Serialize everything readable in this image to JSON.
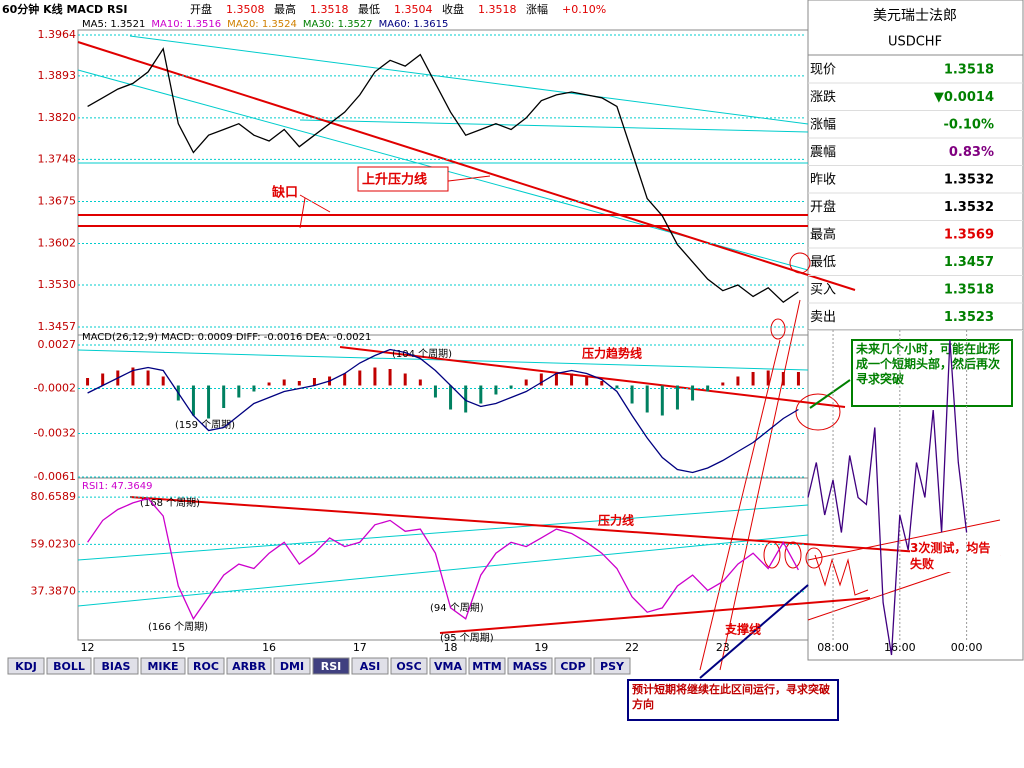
{
  "header": {
    "title": "60分钟 K线 MACD RSI",
    "fields": [
      {
        "label": "开盘",
        "value": "1.3508"
      },
      {
        "label": "最高",
        "value": "1.3518"
      },
      {
        "label": "最低",
        "value": "1.3504"
      },
      {
        "label": "收盘",
        "value": "1.3518"
      },
      {
        "label": "涨幅",
        "value": "+0.10%"
      }
    ]
  },
  "ma_legend": [
    {
      "text": "MA5: 1.3521",
      "color": "#000000"
    },
    {
      "text": "MA10: 1.3516",
      "color": "#cc00cc"
    },
    {
      "text": "MA20: 1.3524",
      "color": "#d08000"
    },
    {
      "text": "MA30: 1.3527",
      "color": "#008000"
    },
    {
      "text": "MA60: 1.3615",
      "color": "#000080"
    }
  ],
  "macd_label": "MACD(26,12,9) MACD: 0.0009 DIFF: -0.0016 DEA: -0.0021",
  "rsi_label": "RSI1: 47.3649",
  "quote": {
    "title": "美元瑞士法郎",
    "symbol": "USDCHF",
    "rows": [
      {
        "label": "现价",
        "value": "1.3518",
        "color": "#008000"
      },
      {
        "label": "涨跌",
        "value": "▼0.0014",
        "color": "#008000"
      },
      {
        "label": "涨幅",
        "value": "-0.10%",
        "color": "#008000"
      },
      {
        "label": "震幅",
        "value": "0.83%",
        "color": "#800080"
      },
      {
        "label": "昨收",
        "value": "1.3532",
        "color": "#000000"
      },
      {
        "label": "开盘",
        "value": "1.3532",
        "color": "#000000"
      },
      {
        "label": "最高",
        "value": "1.3569",
        "color": "#e00000"
      },
      {
        "label": "最低",
        "value": "1.3457",
        "color": "#008000"
      },
      {
        "label": "买入",
        "value": "1.3518",
        "color": "#008000"
      },
      {
        "label": "卖出",
        "value": "1.3523",
        "color": "#008000"
      }
    ]
  },
  "tabs": [
    {
      "label": "KDJ",
      "active": false
    },
    {
      "label": "BOLL",
      "active": false
    },
    {
      "label": "BIAS",
      "active": false
    },
    {
      "label": "MIKE",
      "active": false
    },
    {
      "label": "ROC",
      "active": false
    },
    {
      "label": "ARBR",
      "active": false
    },
    {
      "label": "DMI",
      "active": false
    },
    {
      "label": "RSI",
      "active": true
    },
    {
      "label": "ASI",
      "active": false
    },
    {
      "label": "OSC",
      "active": false
    },
    {
      "label": "VMA",
      "active": false
    },
    {
      "label": "MTM",
      "active": false
    },
    {
      "label": "MASS",
      "active": false
    },
    {
      "label": "CDP",
      "active": false
    },
    {
      "label": "PSY",
      "active": false
    }
  ],
  "annotations": {
    "rise_pressure": "上升压力线",
    "gap": "缺口",
    "pressure_trend": "压力趋势线",
    "p104": "(104 个周期)",
    "p159": "(159 个周期)",
    "p168": "(168 个周期)",
    "pressure": "压力线",
    "p166": "(166 个周期)",
    "p94": "(94 个周期)",
    "p95": "(95 个周期)",
    "support": "支撑线",
    "forecast_top": "未来几个小时，可能在此形成一个短期头部，然后再次寻求突破",
    "tests": "3次测试，均告失败",
    "forecast_range": "预计短期将继续在此区间运行，寻求突破方向"
  },
  "chart_data": [
    {
      "type": "line",
      "categories": [
        "12",
        null,
        null,
        null,
        null,
        null,
        "15",
        null,
        null,
        null,
        null,
        null,
        "16",
        null,
        null,
        null,
        null,
        null,
        "17",
        null,
        null,
        null,
        null,
        null,
        "18",
        null,
        null,
        null,
        null,
        null,
        "19",
        null,
        null,
        null,
        null,
        null,
        "22",
        null,
        null,
        null,
        null,
        null,
        "23",
        null,
        null,
        null,
        null,
        null
      ],
      "series": [
        {
          "name": "收盘",
          "color": "#000000",
          "values": [
            1.384,
            1.3855,
            1.387,
            1.388,
            1.39,
            1.394,
            1.381,
            1.376,
            1.379,
            1.38,
            1.381,
            1.379,
            1.378,
            1.38,
            1.377,
            1.379,
            1.381,
            1.383,
            1.386,
            1.39,
            1.392,
            1.391,
            1.393,
            1.388,
            1.383,
            1.379,
            1.38,
            1.381,
            1.38,
            1.382,
            1.385,
            1.386,
            1.3865,
            1.386,
            1.3855,
            1.384,
            1.376,
            1.368,
            1.365,
            1.36,
            1.357,
            1.354,
            1.352,
            1.353,
            1.351,
            1.3525,
            1.35,
            1.3518
          ]
        }
      ],
      "ylim": [
        1.3457,
        1.3964
      ],
      "yticks": [
        {
          "value": 1.3964,
          "label": "1.3964"
        },
        {
          "value": 1.3893,
          "label": "1.3893"
        },
        {
          "value": 1.382,
          "label": "1.3820"
        },
        {
          "value": 1.3748,
          "label": "1.3748"
        },
        {
          "value": 1.3675,
          "label": "1.3675"
        },
        {
          "value": 1.3602,
          "label": "1.3602"
        },
        {
          "value": 1.353,
          "label": "1.3530"
        },
        {
          "value": 1.3457,
          "label": "1.3457"
        }
      ],
      "grid": true
    },
    {
      "type": "macd",
      "series": [
        {
          "name": "MACD",
          "color": "#c00000",
          "values": [
            0.0005,
            0.0008,
            0.001,
            0.0012,
            0.001,
            0.0006,
            -0.001,
            -0.002,
            -0.0022,
            -0.0015,
            -0.0008,
            -0.0004,
            0.0002,
            0.0004,
            0.0003,
            0.0005,
            0.0006,
            0.0008,
            0.001,
            0.0012,
            0.0011,
            0.0008,
            0.0004,
            -0.0008,
            -0.0016,
            -0.0018,
            -0.0012,
            -0.0006,
            -0.0002,
            0.0004,
            0.0008,
            0.0009,
            0.0008,
            0.0006,
            0.0003,
            -0.0002,
            -0.0012,
            -0.0018,
            -0.002,
            -0.0016,
            -0.001,
            -0.0004,
            0.0002,
            0.0006,
            0.0009,
            0.001,
            0.0009,
            0.0009
          ]
        },
        {
          "name": "DIFF",
          "color": "#000080",
          "values": [
            -0.0005,
            0,
            0.0005,
            0.001,
            0.0012,
            0.001,
            -0.0005,
            -0.002,
            -0.003,
            -0.0028,
            -0.002,
            -0.0012,
            -0.0008,
            -0.0004,
            -0.0002,
            0,
            0.0003,
            0.0008,
            0.0015,
            0.002,
            0.0024,
            0.0022,
            0.0018,
            0.001,
            0,
            -0.001,
            -0.0014,
            -0.0012,
            -0.0008,
            -0.0004,
            0.0002,
            0.0008,
            0.001,
            0.0008,
            0.0004,
            -0.0004,
            -0.002,
            -0.0035,
            -0.0048,
            -0.0056,
            -0.0058,
            -0.0055,
            -0.005,
            -0.0044,
            -0.0038,
            -0.003,
            -0.0022,
            -0.0016
          ]
        }
      ],
      "ylim": [
        -0.0061,
        0.0027
      ],
      "yticks": [
        0.0027,
        -0.0002,
        -0.0032,
        -0.0061
      ],
      "grid": true
    },
    {
      "type": "line",
      "series": [
        {
          "name": "RSI1",
          "color": "#cc00cc",
          "values": [
            60,
            70,
            75,
            78,
            80,
            72,
            40,
            25,
            35,
            45,
            50,
            48,
            55,
            60,
            50,
            55,
            62,
            58,
            60,
            68,
            70,
            65,
            66,
            55,
            30,
            25,
            45,
            55,
            60,
            58,
            62,
            66,
            64,
            60,
            55,
            48,
            35,
            28,
            30,
            40,
            45,
            38,
            42,
            50,
            55,
            48,
            60,
            47.3649
          ]
        }
      ],
      "ylim": [
        15.3,
        83.9
      ],
      "yticks": [
        80.6589,
        {
          "value": 59.023,
          "label": "59.0230"
        },
        {
          "value": 37.387,
          "label": "37.3870"
        }
      ],
      "grid": true
    },
    {
      "type": "line",
      "categories": [
        null,
        null,
        null,
        "08:00",
        null,
        null,
        null,
        null,
        null,
        null,
        null,
        "16:00",
        null,
        null,
        null,
        null,
        null,
        null,
        null,
        "00:00",
        null,
        null,
        null,
        null
      ],
      "series": [
        {
          "name": "分时",
          "color": "#400080",
          "values": [
            50,
            60,
            45,
            55,
            40,
            62,
            50,
            48,
            70,
            20,
            5,
            45,
            35,
            60,
            50,
            75,
            40,
            95,
            60,
            40,
            null,
            null,
            null,
            null
          ]
        }
      ]
    }
  ]
}
